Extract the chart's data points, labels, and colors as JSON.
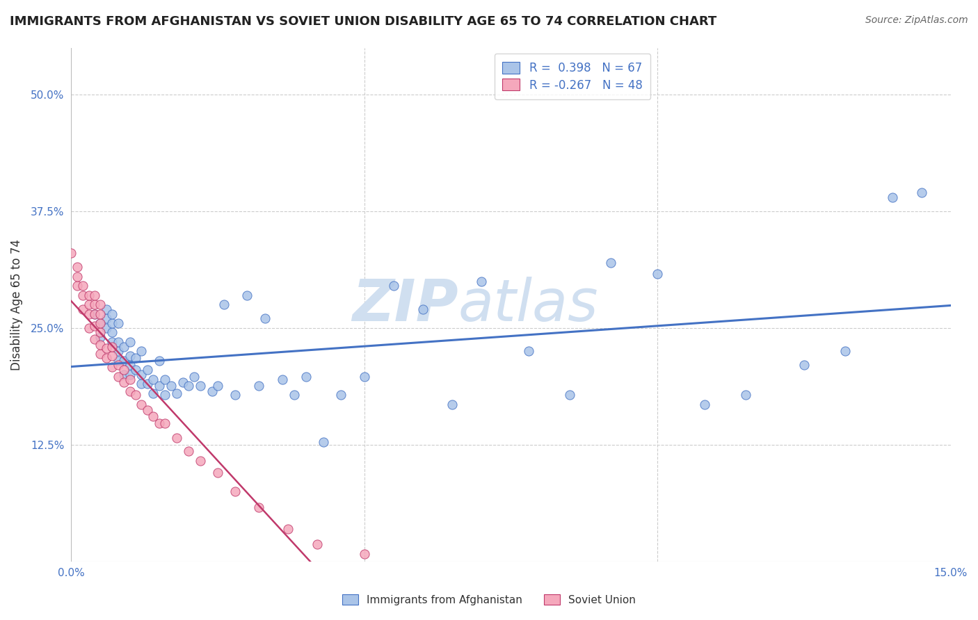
{
  "title": "IMMIGRANTS FROM AFGHANISTAN VS SOVIET UNION DISABILITY AGE 65 TO 74 CORRELATION CHART",
  "source": "Source: ZipAtlas.com",
  "ylabel": "Disability Age 65 to 74",
  "xlim": [
    0.0,
    0.15
  ],
  "ylim": [
    0.0,
    0.55
  ],
  "afghanistan_R": 0.398,
  "afghanistan_N": 67,
  "soviet_R": -0.267,
  "soviet_N": 48,
  "afghanistan_color": "#aac4e8",
  "soviet_color": "#f5a8bc",
  "afghanistan_line_color": "#4472c4",
  "soviet_line_color": "#c0396b",
  "soviet_line_dash_color": "#e8a0b8",
  "watermark": "ZIPatlas",
  "afghanistan_x": [
    0.004,
    0.005,
    0.005,
    0.006,
    0.006,
    0.006,
    0.007,
    0.007,
    0.007,
    0.007,
    0.008,
    0.008,
    0.008,
    0.008,
    0.009,
    0.009,
    0.009,
    0.01,
    0.01,
    0.01,
    0.01,
    0.011,
    0.011,
    0.012,
    0.012,
    0.012,
    0.013,
    0.013,
    0.014,
    0.014,
    0.015,
    0.015,
    0.016,
    0.016,
    0.017,
    0.018,
    0.019,
    0.02,
    0.021,
    0.022,
    0.024,
    0.025,
    0.026,
    0.028,
    0.03,
    0.032,
    0.033,
    0.036,
    0.038,
    0.04,
    0.043,
    0.046,
    0.05,
    0.055,
    0.06,
    0.065,
    0.07,
    0.078,
    0.085,
    0.092,
    0.1,
    0.108,
    0.115,
    0.125,
    0.132,
    0.14,
    0.145
  ],
  "afghanistan_y": [
    0.265,
    0.24,
    0.255,
    0.25,
    0.26,
    0.27,
    0.235,
    0.245,
    0.255,
    0.265,
    0.215,
    0.225,
    0.235,
    0.255,
    0.2,
    0.215,
    0.23,
    0.2,
    0.21,
    0.22,
    0.235,
    0.205,
    0.218,
    0.19,
    0.2,
    0.225,
    0.19,
    0.205,
    0.18,
    0.195,
    0.188,
    0.215,
    0.178,
    0.195,
    0.188,
    0.18,
    0.192,
    0.188,
    0.198,
    0.188,
    0.182,
    0.188,
    0.275,
    0.178,
    0.285,
    0.188,
    0.26,
    0.195,
    0.178,
    0.198,
    0.128,
    0.178,
    0.198,
    0.295,
    0.27,
    0.168,
    0.3,
    0.225,
    0.178,
    0.32,
    0.308,
    0.168,
    0.178,
    0.21,
    0.225,
    0.39,
    0.395
  ],
  "soviet_x": [
    0.0,
    0.001,
    0.001,
    0.001,
    0.002,
    0.002,
    0.002,
    0.003,
    0.003,
    0.003,
    0.003,
    0.004,
    0.004,
    0.004,
    0.004,
    0.004,
    0.005,
    0.005,
    0.005,
    0.005,
    0.005,
    0.005,
    0.006,
    0.006,
    0.007,
    0.007,
    0.007,
    0.008,
    0.008,
    0.009,
    0.009,
    0.01,
    0.01,
    0.011,
    0.012,
    0.013,
    0.014,
    0.015,
    0.016,
    0.018,
    0.02,
    0.022,
    0.025,
    0.028,
    0.032,
    0.037,
    0.042,
    0.05
  ],
  "soviet_y": [
    0.33,
    0.295,
    0.305,
    0.315,
    0.27,
    0.285,
    0.295,
    0.25,
    0.265,
    0.275,
    0.285,
    0.238,
    0.252,
    0.265,
    0.275,
    0.285,
    0.222,
    0.232,
    0.245,
    0.255,
    0.265,
    0.275,
    0.218,
    0.228,
    0.208,
    0.22,
    0.23,
    0.198,
    0.21,
    0.192,
    0.205,
    0.182,
    0.195,
    0.178,
    0.168,
    0.162,
    0.155,
    0.148,
    0.148,
    0.132,
    0.118,
    0.108,
    0.095,
    0.075,
    0.058,
    0.035,
    0.018,
    0.008
  ]
}
